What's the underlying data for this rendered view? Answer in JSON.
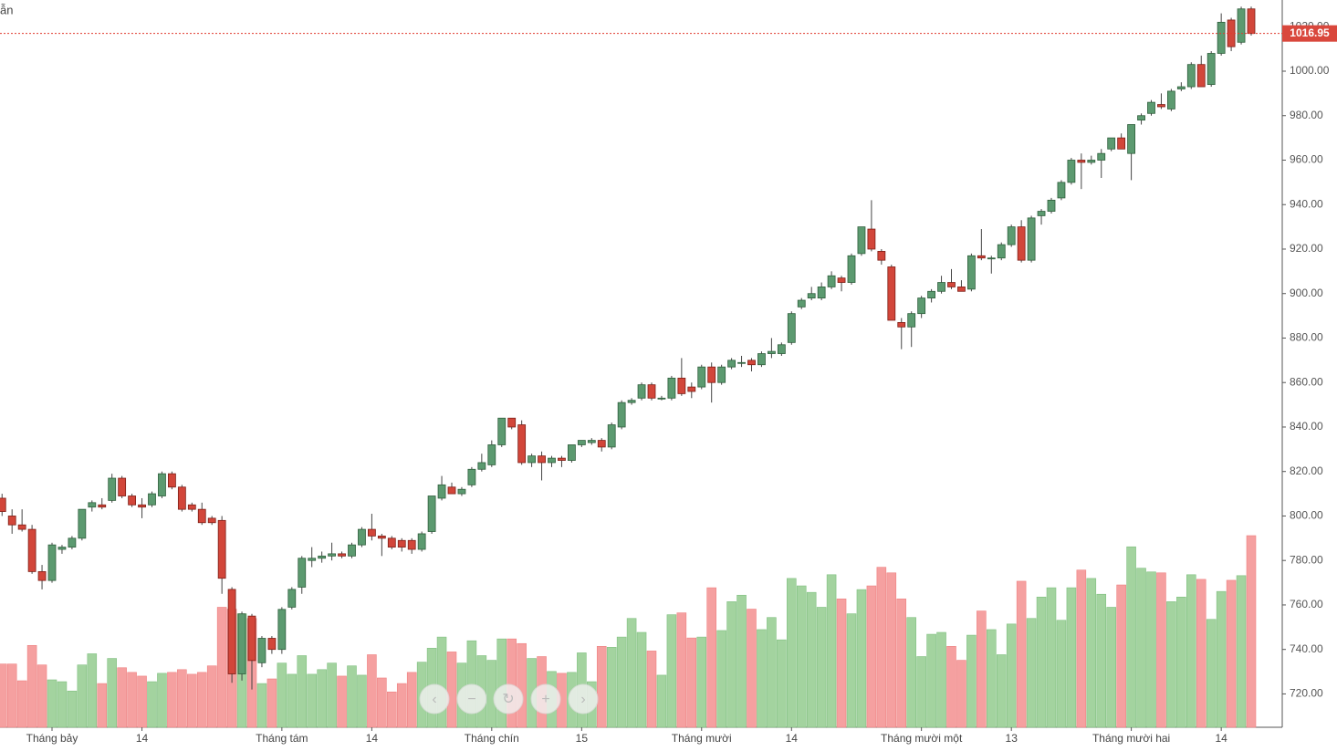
{
  "chart_data": {
    "type": "candlestick",
    "title": "ẫn",
    "ylim": [
      705,
      1032
    ],
    "yticks": [
      {
        "value": 720,
        "label": "720.00"
      },
      {
        "value": 740,
        "label": "740.00"
      },
      {
        "value": 760,
        "label": "760.00"
      },
      {
        "value": 780,
        "label": "780.00"
      },
      {
        "value": 800,
        "label": "800.00"
      },
      {
        "value": 820,
        "label": "820.00"
      },
      {
        "value": 840,
        "label": "840.00"
      },
      {
        "value": 860,
        "label": "860.00"
      },
      {
        "value": 880,
        "label": "880.00"
      },
      {
        "value": 900,
        "label": "900.00"
      },
      {
        "value": 920,
        "label": "920.00"
      },
      {
        "value": 940,
        "label": "940.00"
      },
      {
        "value": 960,
        "label": "960.00"
      },
      {
        "value": 980,
        "label": "980.00"
      },
      {
        "value": 1000,
        "label": "1000.00"
      },
      {
        "value": 1020,
        "label": "1020.00"
      }
    ],
    "last_price": 1016.95,
    "up_color": "#5c9a70",
    "down_color": "#d2463a",
    "volume_up_color": "#a3d39f",
    "volume_down_color": "#f5a0a0",
    "candles": [
      {
        "o": 808,
        "h": 810,
        "l": 800,
        "c": 802,
        "v": 68
      },
      {
        "o": 800,
        "h": 803,
        "l": 792,
        "c": 796,
        "v": 68
      },
      {
        "o": 796,
        "h": 803,
        "l": 793,
        "c": 794,
        "v": 50
      },
      {
        "o": 794,
        "h": 796,
        "l": 774,
        "c": 775,
        "v": 88
      },
      {
        "o": 775,
        "h": 778,
        "l": 767,
        "c": 771,
        "v": 67
      },
      {
        "o": 771,
        "h": 788,
        "l": 770,
        "c": 787,
        "v": 51,
        "label": "Tháng bảy"
      },
      {
        "o": 785,
        "h": 787,
        "l": 783,
        "c": 786,
        "v": 49
      },
      {
        "o": 786,
        "h": 791,
        "l": 785,
        "c": 790,
        "v": 39
      },
      {
        "o": 790,
        "h": 803,
        "l": 789,
        "c": 803,
        "v": 67
      },
      {
        "o": 804,
        "h": 807,
        "l": 802,
        "c": 806,
        "v": 79
      },
      {
        "o": 805,
        "h": 808,
        "l": 803,
        "c": 804,
        "v": 47
      },
      {
        "o": 807,
        "h": 819,
        "l": 806,
        "c": 817,
        "v": 74
      },
      {
        "o": 817,
        "h": 818,
        "l": 808,
        "c": 809,
        "v": 64
      },
      {
        "o": 809,
        "h": 810,
        "l": 804,
        "c": 805,
        "v": 59
      },
      {
        "o": 805,
        "h": 808,
        "l": 799,
        "c": 804,
        "v": 55,
        "label": "14"
      },
      {
        "o": 805,
        "h": 811,
        "l": 804,
        "c": 810,
        "v": 49
      },
      {
        "o": 809,
        "h": 820,
        "l": 808,
        "c": 819,
        "v": 58
      },
      {
        "o": 819,
        "h": 820,
        "l": 812,
        "c": 813,
        "v": 59
      },
      {
        "o": 813,
        "h": 814,
        "l": 802,
        "c": 803,
        "v": 62
      },
      {
        "o": 805,
        "h": 806,
        "l": 802,
        "c": 803,
        "v": 57
      },
      {
        "o": 803,
        "h": 806,
        "l": 796,
        "c": 797,
        "v": 59
      },
      {
        "o": 799,
        "h": 800,
        "l": 796,
        "c": 797,
        "v": 66
      },
      {
        "o": 798,
        "h": 800,
        "l": 765,
        "c": 772,
        "v": 129
      },
      {
        "o": 767,
        "h": 768,
        "l": 725,
        "c": 729,
        "v": 127
      },
      {
        "o": 729,
        "h": 757,
        "l": 726,
        "c": 756,
        "v": 122
      },
      {
        "o": 755,
        "h": 756,
        "l": 722,
        "c": 735,
        "v": 117
      },
      {
        "o": 734,
        "h": 746,
        "l": 732,
        "c": 745,
        "v": 47
      },
      {
        "o": 745,
        "h": 746,
        "l": 738,
        "c": 740,
        "v": 52
      },
      {
        "o": 740,
        "h": 759,
        "l": 738,
        "c": 758,
        "v": 69,
        "label": "Tháng tám"
      },
      {
        "o": 759,
        "h": 768,
        "l": 758,
        "c": 767,
        "v": 57
      },
      {
        "o": 768,
        "h": 782,
        "l": 765,
        "c": 781,
        "v": 77
      },
      {
        "o": 780,
        "h": 786,
        "l": 777,
        "c": 781,
        "v": 57
      },
      {
        "o": 781,
        "h": 784,
        "l": 779,
        "c": 782,
        "v": 62
      },
      {
        "o": 782,
        "h": 788,
        "l": 780,
        "c": 783,
        "v": 69
      },
      {
        "o": 783,
        "h": 784,
        "l": 781,
        "c": 782,
        "v": 55
      },
      {
        "o": 782,
        "h": 788,
        "l": 781,
        "c": 787,
        "v": 66
      },
      {
        "o": 787,
        "h": 795,
        "l": 786,
        "c": 794,
        "v": 56
      },
      {
        "o": 794,
        "h": 801,
        "l": 789,
        "c": 791,
        "v": 78,
        "label": "14"
      },
      {
        "o": 791,
        "h": 792,
        "l": 782,
        "c": 790,
        "v": 53
      },
      {
        "o": 790,
        "h": 791,
        "l": 785,
        "c": 786,
        "v": 38
      },
      {
        "o": 789,
        "h": 790,
        "l": 784,
        "c": 786,
        "v": 47
      },
      {
        "o": 789,
        "h": 790,
        "l": 783,
        "c": 785,
        "v": 59
      },
      {
        "o": 785,
        "h": 793,
        "l": 784,
        "c": 792,
        "v": 70
      },
      {
        "o": 793,
        "h": 809,
        "l": 792,
        "c": 809,
        "v": 85
      },
      {
        "o": 808,
        "h": 818,
        "l": 807,
        "c": 814,
        "v": 97
      },
      {
        "o": 813,
        "h": 815,
        "l": 810,
        "c": 810,
        "v": 81
      },
      {
        "o": 810,
        "h": 813,
        "l": 809,
        "c": 812,
        "v": 69
      },
      {
        "o": 814,
        "h": 822,
        "l": 813,
        "c": 821,
        "v": 93
      },
      {
        "o": 821,
        "h": 828,
        "l": 820,
        "c": 824,
        "v": 77
      },
      {
        "o": 823,
        "h": 834,
        "l": 822,
        "c": 832,
        "v": 72,
        "label": "Tháng chín"
      },
      {
        "o": 832,
        "h": 844,
        "l": 831,
        "c": 844,
        "v": 95
      },
      {
        "o": 844,
        "h": 844,
        "l": 839,
        "c": 840,
        "v": 95
      },
      {
        "o": 841,
        "h": 843,
        "l": 823,
        "c": 824,
        "v": 90
      },
      {
        "o": 824,
        "h": 828,
        "l": 822,
        "c": 827,
        "v": 74
      },
      {
        "o": 827,
        "h": 829,
        "l": 816,
        "c": 824,
        "v": 76
      },
      {
        "o": 824,
        "h": 827,
        "l": 822,
        "c": 826,
        "v": 60
      },
      {
        "o": 826,
        "h": 827,
        "l": 822,
        "c": 825,
        "v": 58
      },
      {
        "o": 825,
        "h": 832,
        "l": 824,
        "c": 832,
        "v": 59
      },
      {
        "o": 832,
        "h": 834,
        "l": 831,
        "c": 834,
        "v": 80,
        "label": "15"
      },
      {
        "o": 833,
        "h": 835,
        "l": 832,
        "c": 834,
        "v": 49
      },
      {
        "o": 834,
        "h": 835,
        "l": 829,
        "c": 831,
        "v": 87
      },
      {
        "o": 831,
        "h": 842,
        "l": 830,
        "c": 841,
        "v": 86
      },
      {
        "o": 840,
        "h": 852,
        "l": 839,
        "c": 851,
        "v": 97
      },
      {
        "o": 851,
        "h": 853,
        "l": 850,
        "c": 852,
        "v": 117
      },
      {
        "o": 853,
        "h": 860,
        "l": 852,
        "c": 859,
        "v": 102
      },
      {
        "o": 859,
        "h": 860,
        "l": 852,
        "c": 853,
        "v": 82
      },
      {
        "o": 853,
        "h": 854,
        "l": 852,
        "c": 853,
        "v": 56
      },
      {
        "o": 853,
        "h": 863,
        "l": 852,
        "c": 862,
        "v": 121
      },
      {
        "o": 862,
        "h": 871,
        "l": 854,
        "c": 855,
        "v": 123
      },
      {
        "o": 858,
        "h": 860,
        "l": 853,
        "c": 856,
        "v": 96
      },
      {
        "o": 858,
        "h": 868,
        "l": 857,
        "c": 867,
        "v": 97,
        "label": "Tháng mười"
      },
      {
        "o": 867,
        "h": 869,
        "l": 851,
        "c": 860,
        "v": 150
      },
      {
        "o": 860,
        "h": 868,
        "l": 859,
        "c": 867,
        "v": 104
      },
      {
        "o": 867,
        "h": 871,
        "l": 866,
        "c": 870,
        "v": 135
      },
      {
        "o": 869,
        "h": 872,
        "l": 867,
        "c": 869,
        "v": 142
      },
      {
        "o": 870,
        "h": 871,
        "l": 865,
        "c": 868,
        "v": 127
      },
      {
        "o": 868,
        "h": 874,
        "l": 867,
        "c": 873,
        "v": 105
      },
      {
        "o": 873,
        "h": 880,
        "l": 871,
        "c": 874,
        "v": 118
      },
      {
        "o": 873,
        "h": 878,
        "l": 872,
        "c": 877,
        "v": 94
      },
      {
        "o": 878,
        "h": 892,
        "l": 877,
        "c": 891,
        "v": 160,
        "label": "14"
      },
      {
        "o": 894,
        "h": 898,
        "l": 893,
        "c": 897,
        "v": 152
      },
      {
        "o": 898,
        "h": 903,
        "l": 897,
        "c": 900,
        "v": 145
      },
      {
        "o": 898,
        "h": 905,
        "l": 897,
        "c": 903,
        "v": 129
      },
      {
        "o": 903,
        "h": 910,
        "l": 902,
        "c": 908,
        "v": 164
      },
      {
        "o": 907,
        "h": 908,
        "l": 901,
        "c": 905,
        "v": 138
      },
      {
        "o": 905,
        "h": 918,
        "l": 904,
        "c": 917,
        "v": 122
      },
      {
        "o": 918,
        "h": 930,
        "l": 917,
        "c": 930,
        "v": 148
      },
      {
        "o": 929,
        "h": 942,
        "l": 919,
        "c": 920,
        "v": 152
      },
      {
        "o": 919,
        "h": 920,
        "l": 913,
        "c": 915,
        "v": 172
      },
      {
        "o": 912,
        "h": 913,
        "l": 888,
        "c": 888,
        "v": 166
      },
      {
        "o": 887,
        "h": 889,
        "l": 875,
        "c": 885,
        "v": 138
      },
      {
        "o": 885,
        "h": 892,
        "l": 876,
        "c": 891,
        "v": 118
      },
      {
        "o": 891,
        "h": 899,
        "l": 889,
        "c": 898,
        "v": 76,
        "label": "Tháng mười một"
      },
      {
        "o": 898,
        "h": 902,
        "l": 896,
        "c": 901,
        "v": 100
      },
      {
        "o": 901,
        "h": 908,
        "l": 900,
        "c": 905,
        "v": 102
      },
      {
        "o": 905,
        "h": 911,
        "l": 902,
        "c": 903,
        "v": 87
      },
      {
        "o": 903,
        "h": 906,
        "l": 901,
        "c": 901,
        "v": 72
      },
      {
        "o": 902,
        "h": 918,
        "l": 901,
        "c": 917,
        "v": 99
      },
      {
        "o": 917,
        "h": 929,
        "l": 915,
        "c": 916,
        "v": 125
      },
      {
        "o": 916,
        "h": 917,
        "l": 909,
        "c": 916,
        "v": 105
      },
      {
        "o": 916,
        "h": 923,
        "l": 915,
        "c": 922,
        "v": 78
      },
      {
        "o": 922,
        "h": 931,
        "l": 921,
        "c": 930,
        "v": 111,
        "label": "13"
      },
      {
        "o": 930,
        "h": 933,
        "l": 914,
        "c": 915,
        "v": 157
      },
      {
        "o": 915,
        "h": 935,
        "l": 914,
        "c": 934,
        "v": 117
      },
      {
        "o": 935,
        "h": 938,
        "l": 931,
        "c": 937,
        "v": 140
      },
      {
        "o": 937,
        "h": 943,
        "l": 936,
        "c": 942,
        "v": 150
      },
      {
        "o": 943,
        "h": 951,
        "l": 942,
        "c": 950,
        "v": 115
      },
      {
        "o": 950,
        "h": 961,
        "l": 949,
        "c": 960,
        "v": 150
      },
      {
        "o": 960,
        "h": 963,
        "l": 947,
        "c": 959,
        "v": 169
      },
      {
        "o": 959,
        "h": 962,
        "l": 958,
        "c": 960,
        "v": 160
      },
      {
        "o": 960,
        "h": 965,
        "l": 952,
        "c": 963,
        "v": 143
      },
      {
        "o": 965,
        "h": 970,
        "l": 964,
        "c": 970,
        "v": 129
      },
      {
        "o": 970,
        "h": 972,
        "l": 965,
        "c": 965,
        "v": 153
      },
      {
        "o": 963,
        "h": 976,
        "l": 951,
        "c": 976,
        "v": 194,
        "label": "Tháng mười hai"
      },
      {
        "o": 978,
        "h": 981,
        "l": 976,
        "c": 980,
        "v": 171
      },
      {
        "o": 981,
        "h": 987,
        "l": 980,
        "c": 986,
        "v": 167
      },
      {
        "o": 985,
        "h": 990,
        "l": 983,
        "c": 984,
        "v": 166
      },
      {
        "o": 983,
        "h": 992,
        "l": 982,
        "c": 991,
        "v": 135
      },
      {
        "o": 992,
        "h": 995,
        "l": 991,
        "c": 993,
        "v": 140
      },
      {
        "o": 993,
        "h": 1004,
        "l": 992,
        "c": 1003,
        "v": 164
      },
      {
        "o": 1003,
        "h": 1007,
        "l": 993,
        "c": 993,
        "v": 159
      },
      {
        "o": 994,
        "h": 1009,
        "l": 993,
        "c": 1008,
        "v": 116
      },
      {
        "o": 1008,
        "h": 1026,
        "l": 1007,
        "c": 1022,
        "v": 146,
        "label": "14"
      },
      {
        "o": 1023,
        "h": 1024,
        "l": 1009,
        "c": 1011,
        "v": 158
      },
      {
        "o": 1013,
        "h": 1029,
        "l": 1012,
        "c": 1028,
        "v": 163
      },
      {
        "o": 1028,
        "h": 1029,
        "l": 1016,
        "c": 1016.95,
        "v": 206
      }
    ]
  }
}
